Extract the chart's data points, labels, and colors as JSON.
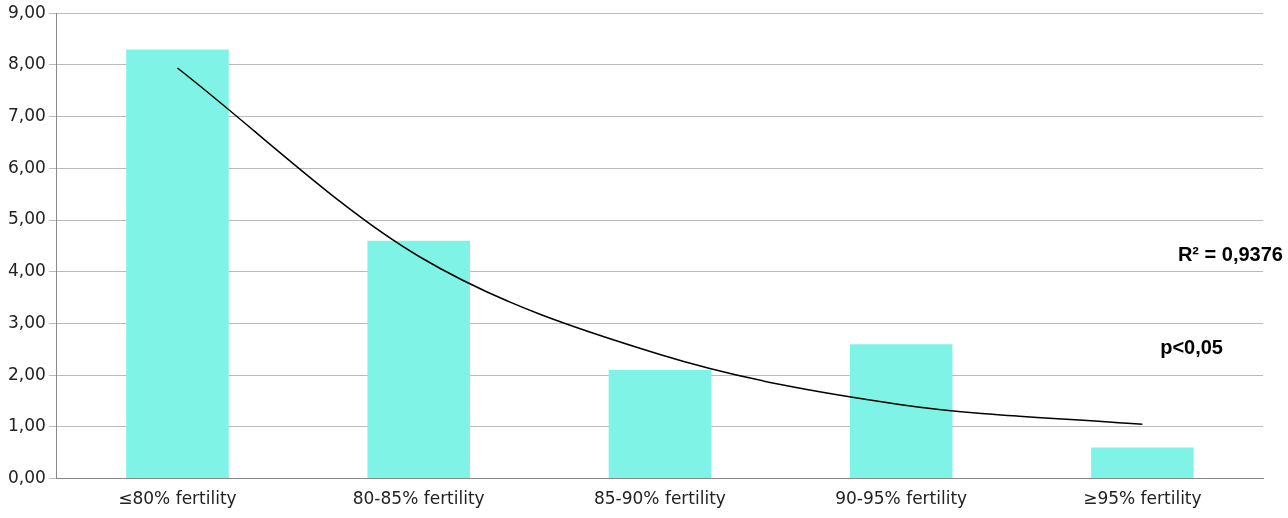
{
  "chart_data": {
    "type": "bar",
    "categories": [
      "≤80% fertility",
      "80-85% fertility",
      "85-90% fertility",
      "90-95% fertility",
      "≥95% fertility"
    ],
    "series": [
      {
        "color": "#7ff3e6",
        "values": [
          8.3,
          4.6,
          2.1,
          2.6,
          0.6
        ]
      },
      {
        "type": "line",
        "color": "#000000",
        "marker": "none",
        "x": [
          "≤80% fertility",
          "80-85% fertility",
          "85-90% fertility",
          "90-95% fertility",
          "≥95% fertility"
        ],
        "values": [
          7.94,
          4.3,
          2.4,
          1.43,
          1.05
        ]
      }
    ],
    "ylim": [
      0,
      9
    ],
    "yticks": [
      {
        "value": 0,
        "label": "0,00"
      },
      {
        "value": 1,
        "label": "1,00"
      },
      {
        "value": 2,
        "label": "2,00"
      },
      {
        "value": 3,
        "label": "3,00"
      },
      {
        "value": 4,
        "label": "4,00"
      },
      {
        "value": 5,
        "label": "5,00"
      },
      {
        "value": 6,
        "label": "6,00"
      },
      {
        "value": 7,
        "label": "7,00"
      },
      {
        "value": 8,
        "label": "8,00"
      },
      {
        "value": 9,
        "label": "9,00"
      }
    ],
    "grid": "y",
    "legend": false,
    "annotations": [
      "R² = 0,9376",
      "p<0,05"
    ]
  }
}
